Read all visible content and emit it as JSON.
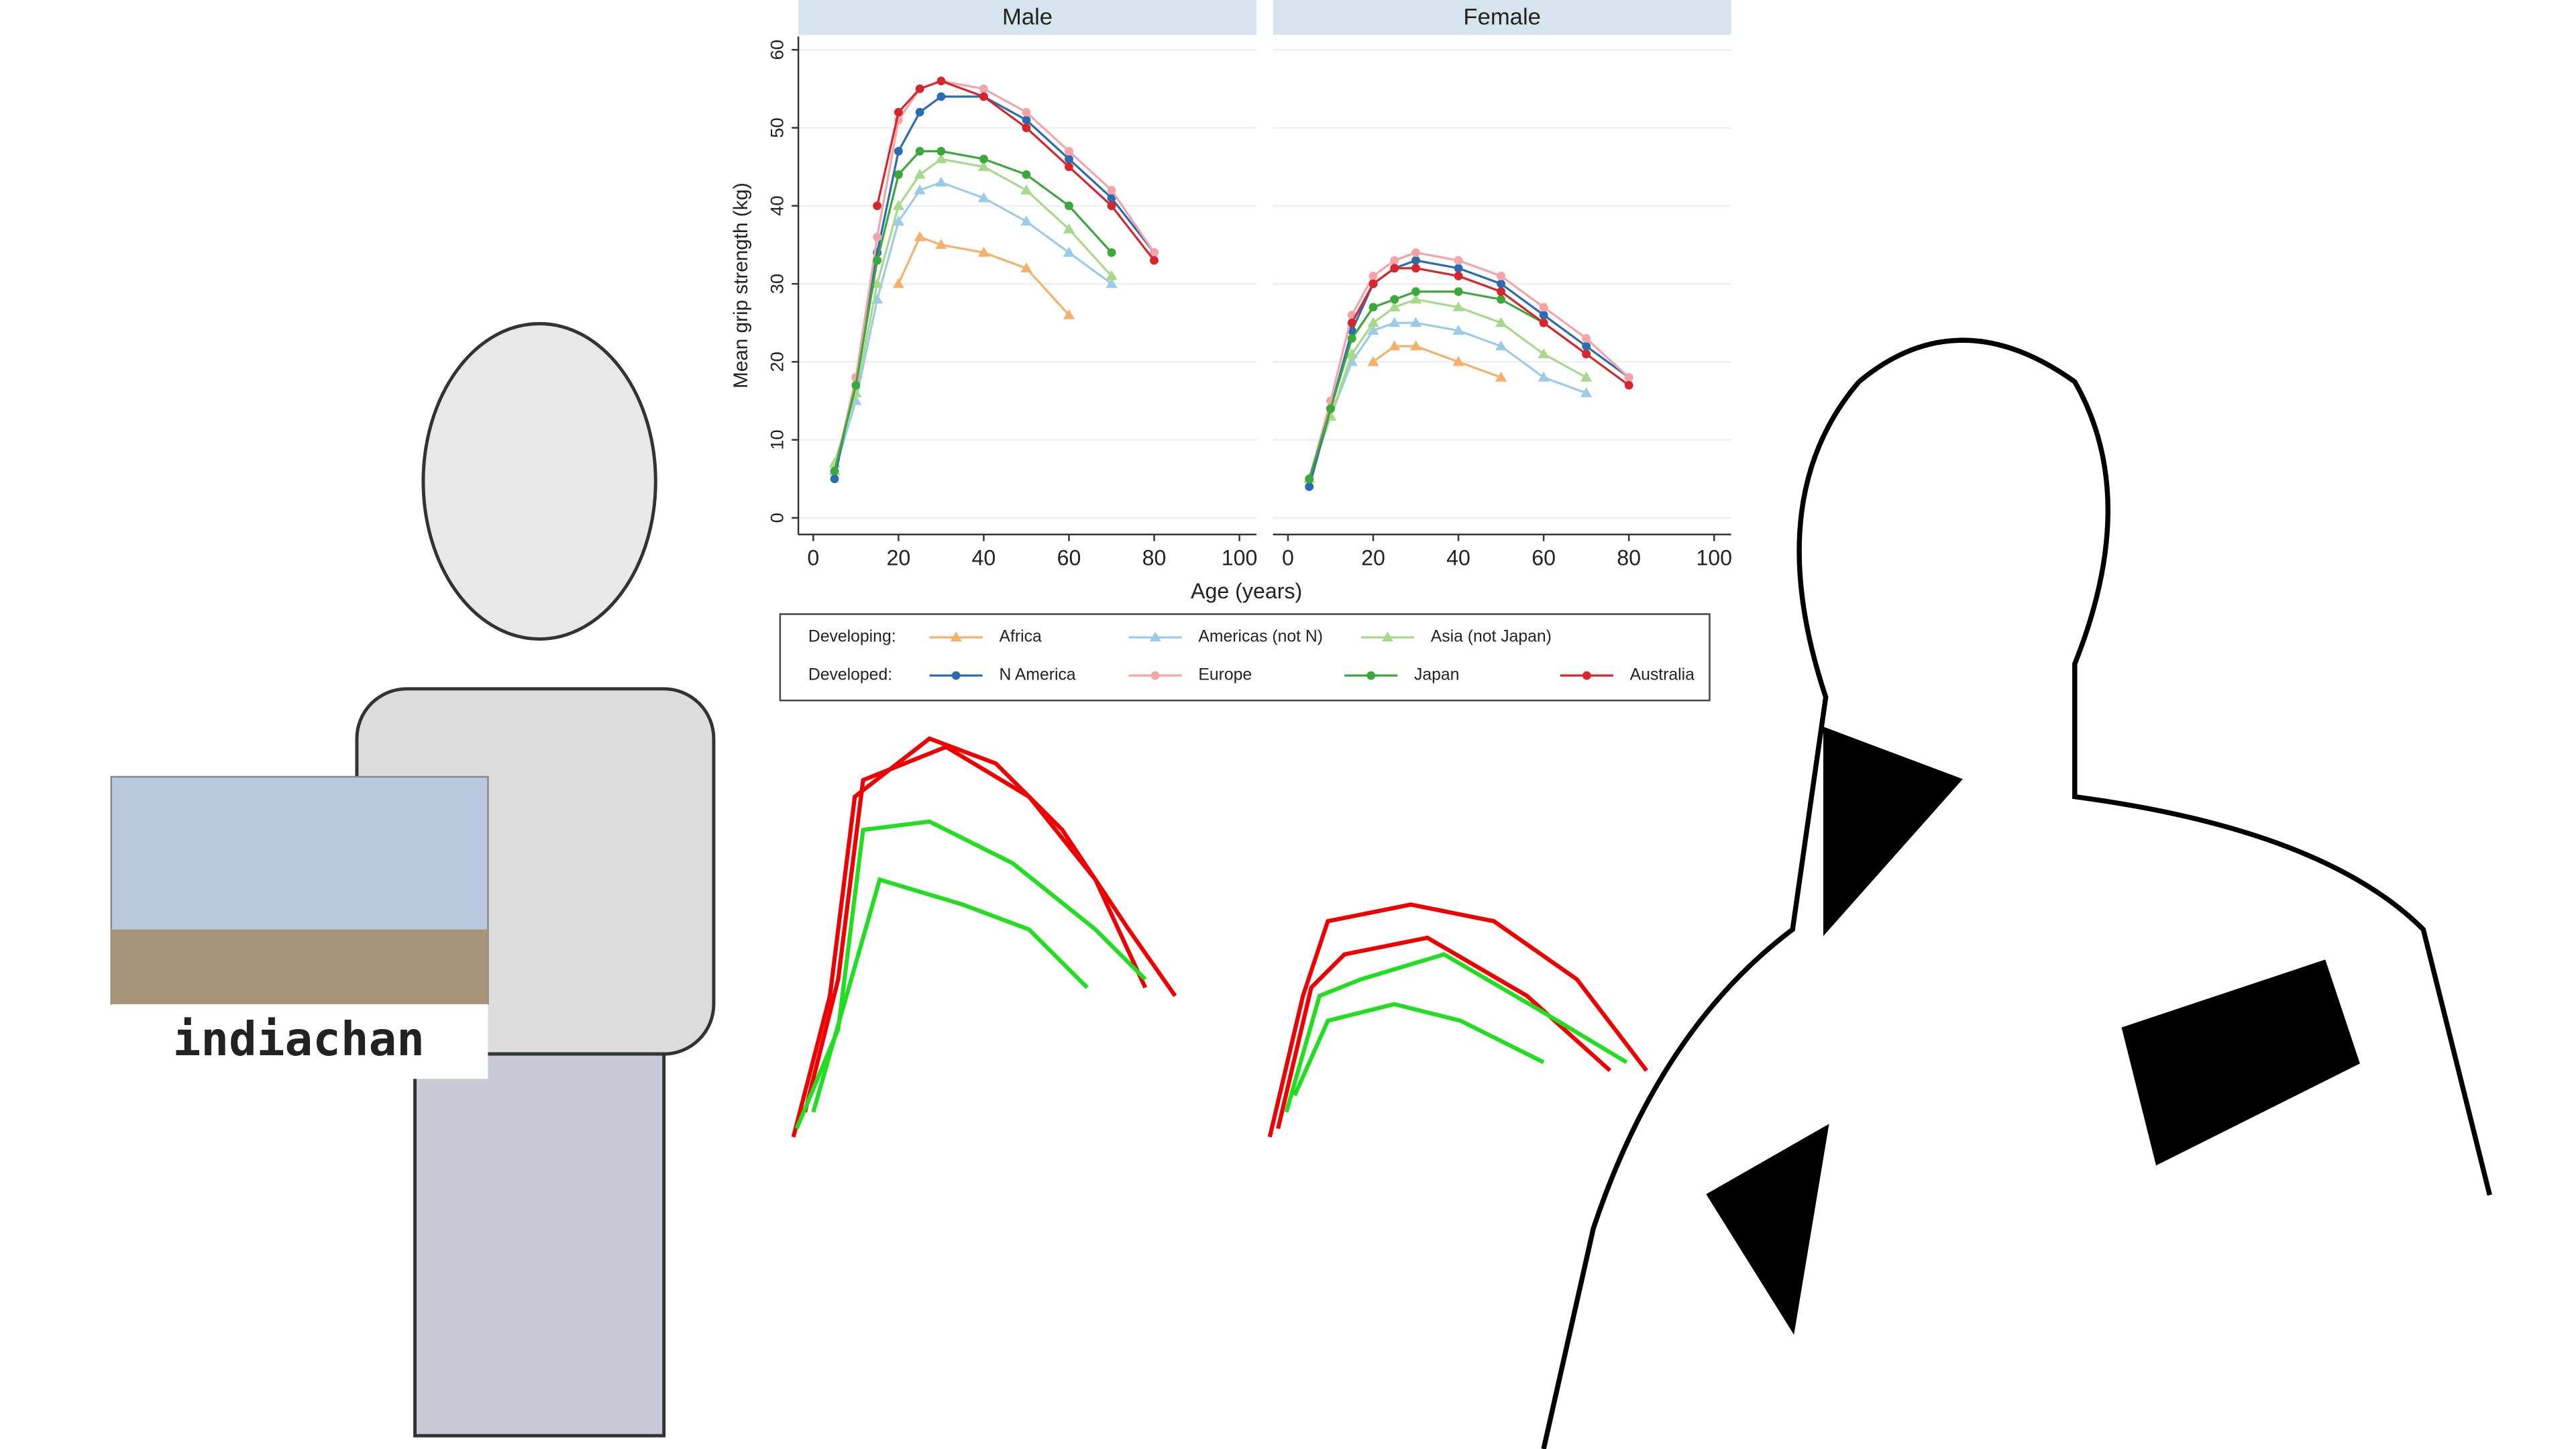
{
  "chart_data": [
    {
      "type": "line",
      "title": "Male",
      "ylabel": "Mean grip strength (kg)",
      "xlabel": "Age (years)",
      "x": [
        5,
        10,
        15,
        20,
        25,
        30,
        40,
        50,
        60,
        70,
        80,
        90
      ],
      "xlim": [
        -3.5,
        104
      ],
      "xticks": [
        0,
        20,
        40,
        60,
        80,
        100
      ],
      "ylim": [
        -2,
        62
      ],
      "yticks": [
        0,
        10,
        20,
        30,
        40,
        50,
        60
      ],
      "grid": true,
      "series": [
        {
          "name": "Africa",
          "color": "#f5b06b",
          "marker": "triangle",
          "values": [
            null,
            null,
            null,
            30,
            36,
            35,
            34,
            32,
            26,
            null,
            null,
            null
          ]
        },
        {
          "name": "Americas (not N)",
          "color": "#9ccbe8",
          "marker": "triangle",
          "values": [
            6,
            15,
            28,
            38,
            42,
            43,
            41,
            38,
            34,
            30,
            null,
            null
          ]
        },
        {
          "name": "Asia (not Japan)",
          "color": "#a6d98b",
          "marker": "triangle",
          "values": [
            7,
            16,
            30,
            40,
            44,
            46,
            45,
            42,
            37,
            31,
            null,
            null
          ]
        },
        {
          "name": "N America",
          "color": "#2b6cb0",
          "marker": "circle",
          "values": [
            5,
            18,
            34,
            47,
            52,
            54,
            54,
            51,
            46,
            41,
            34,
            null
          ]
        },
        {
          "name": "Europe",
          "color": "#f4a3a8",
          "marker": "circle",
          "values": [
            6,
            18,
            36,
            51,
            55,
            56,
            55,
            52,
            47,
            42,
            34,
            null
          ]
        },
        {
          "name": "Japan",
          "color": "#3aa83a",
          "marker": "circle",
          "values": [
            6,
            17,
            33,
            44,
            47,
            47,
            46,
            44,
            40,
            34,
            null,
            null
          ]
        },
        {
          "name": "Australia",
          "color": "#d7262b",
          "marker": "circle",
          "values": [
            null,
            null,
            40,
            52,
            55,
            56,
            54,
            50,
            45,
            40,
            33,
            null
          ]
        }
      ]
    },
    {
      "type": "line",
      "title": "Female",
      "x": [
        5,
        10,
        15,
        20,
        25,
        30,
        40,
        50,
        60,
        70,
        80,
        90
      ],
      "xlim": [
        -3.5,
        104
      ],
      "xticks": [
        0,
        20,
        40,
        60,
        80,
        100
      ],
      "ylim": [
        -2,
        62
      ],
      "grid": true,
      "series": [
        {
          "color": "#f5b06b",
          "marker": "triangle",
          "values": [
            null,
            null,
            null,
            20,
            22,
            22,
            20,
            18,
            null,
            null,
            null,
            null
          ]
        },
        {
          "color": "#9ccbe8",
          "marker": "triangle",
          "values": [
            5,
            13,
            20,
            24,
            25,
            25,
            24,
            22,
            18,
            16,
            null,
            null
          ]
        },
        {
          "color": "#a6d98b",
          "marker": "triangle",
          "values": [
            5,
            13,
            21,
            25,
            27,
            28,
            27,
            25,
            21,
            18,
            null,
            null
          ]
        },
        {
          "color": "#2b6cb0",
          "marker": "circle",
          "values": [
            4,
            14,
            24,
            30,
            32,
            33,
            32,
            30,
            26,
            22,
            18,
            null
          ]
        },
        {
          "color": "#f4a3a8",
          "marker": "circle",
          "values": [
            5,
            15,
            26,
            31,
            33,
            34,
            33,
            31,
            27,
            23,
            18,
            null
          ]
        },
        {
          "color": "#3aa83a",
          "marker": "circle",
          "values": [
            5,
            14,
            23,
            27,
            28,
            29,
            29,
            28,
            25,
            21,
            null,
            null
          ]
        },
        {
          "color": "#d7262b",
          "marker": "circle",
          "values": [
            null,
            null,
            25,
            30,
            32,
            32,
            31,
            29,
            25,
            21,
            17,
            null
          ]
        }
      ]
    }
  ],
  "legend_headings": [
    "Developing:",
    "Developed:"
  ],
  "picture_caption": "indiachan"
}
